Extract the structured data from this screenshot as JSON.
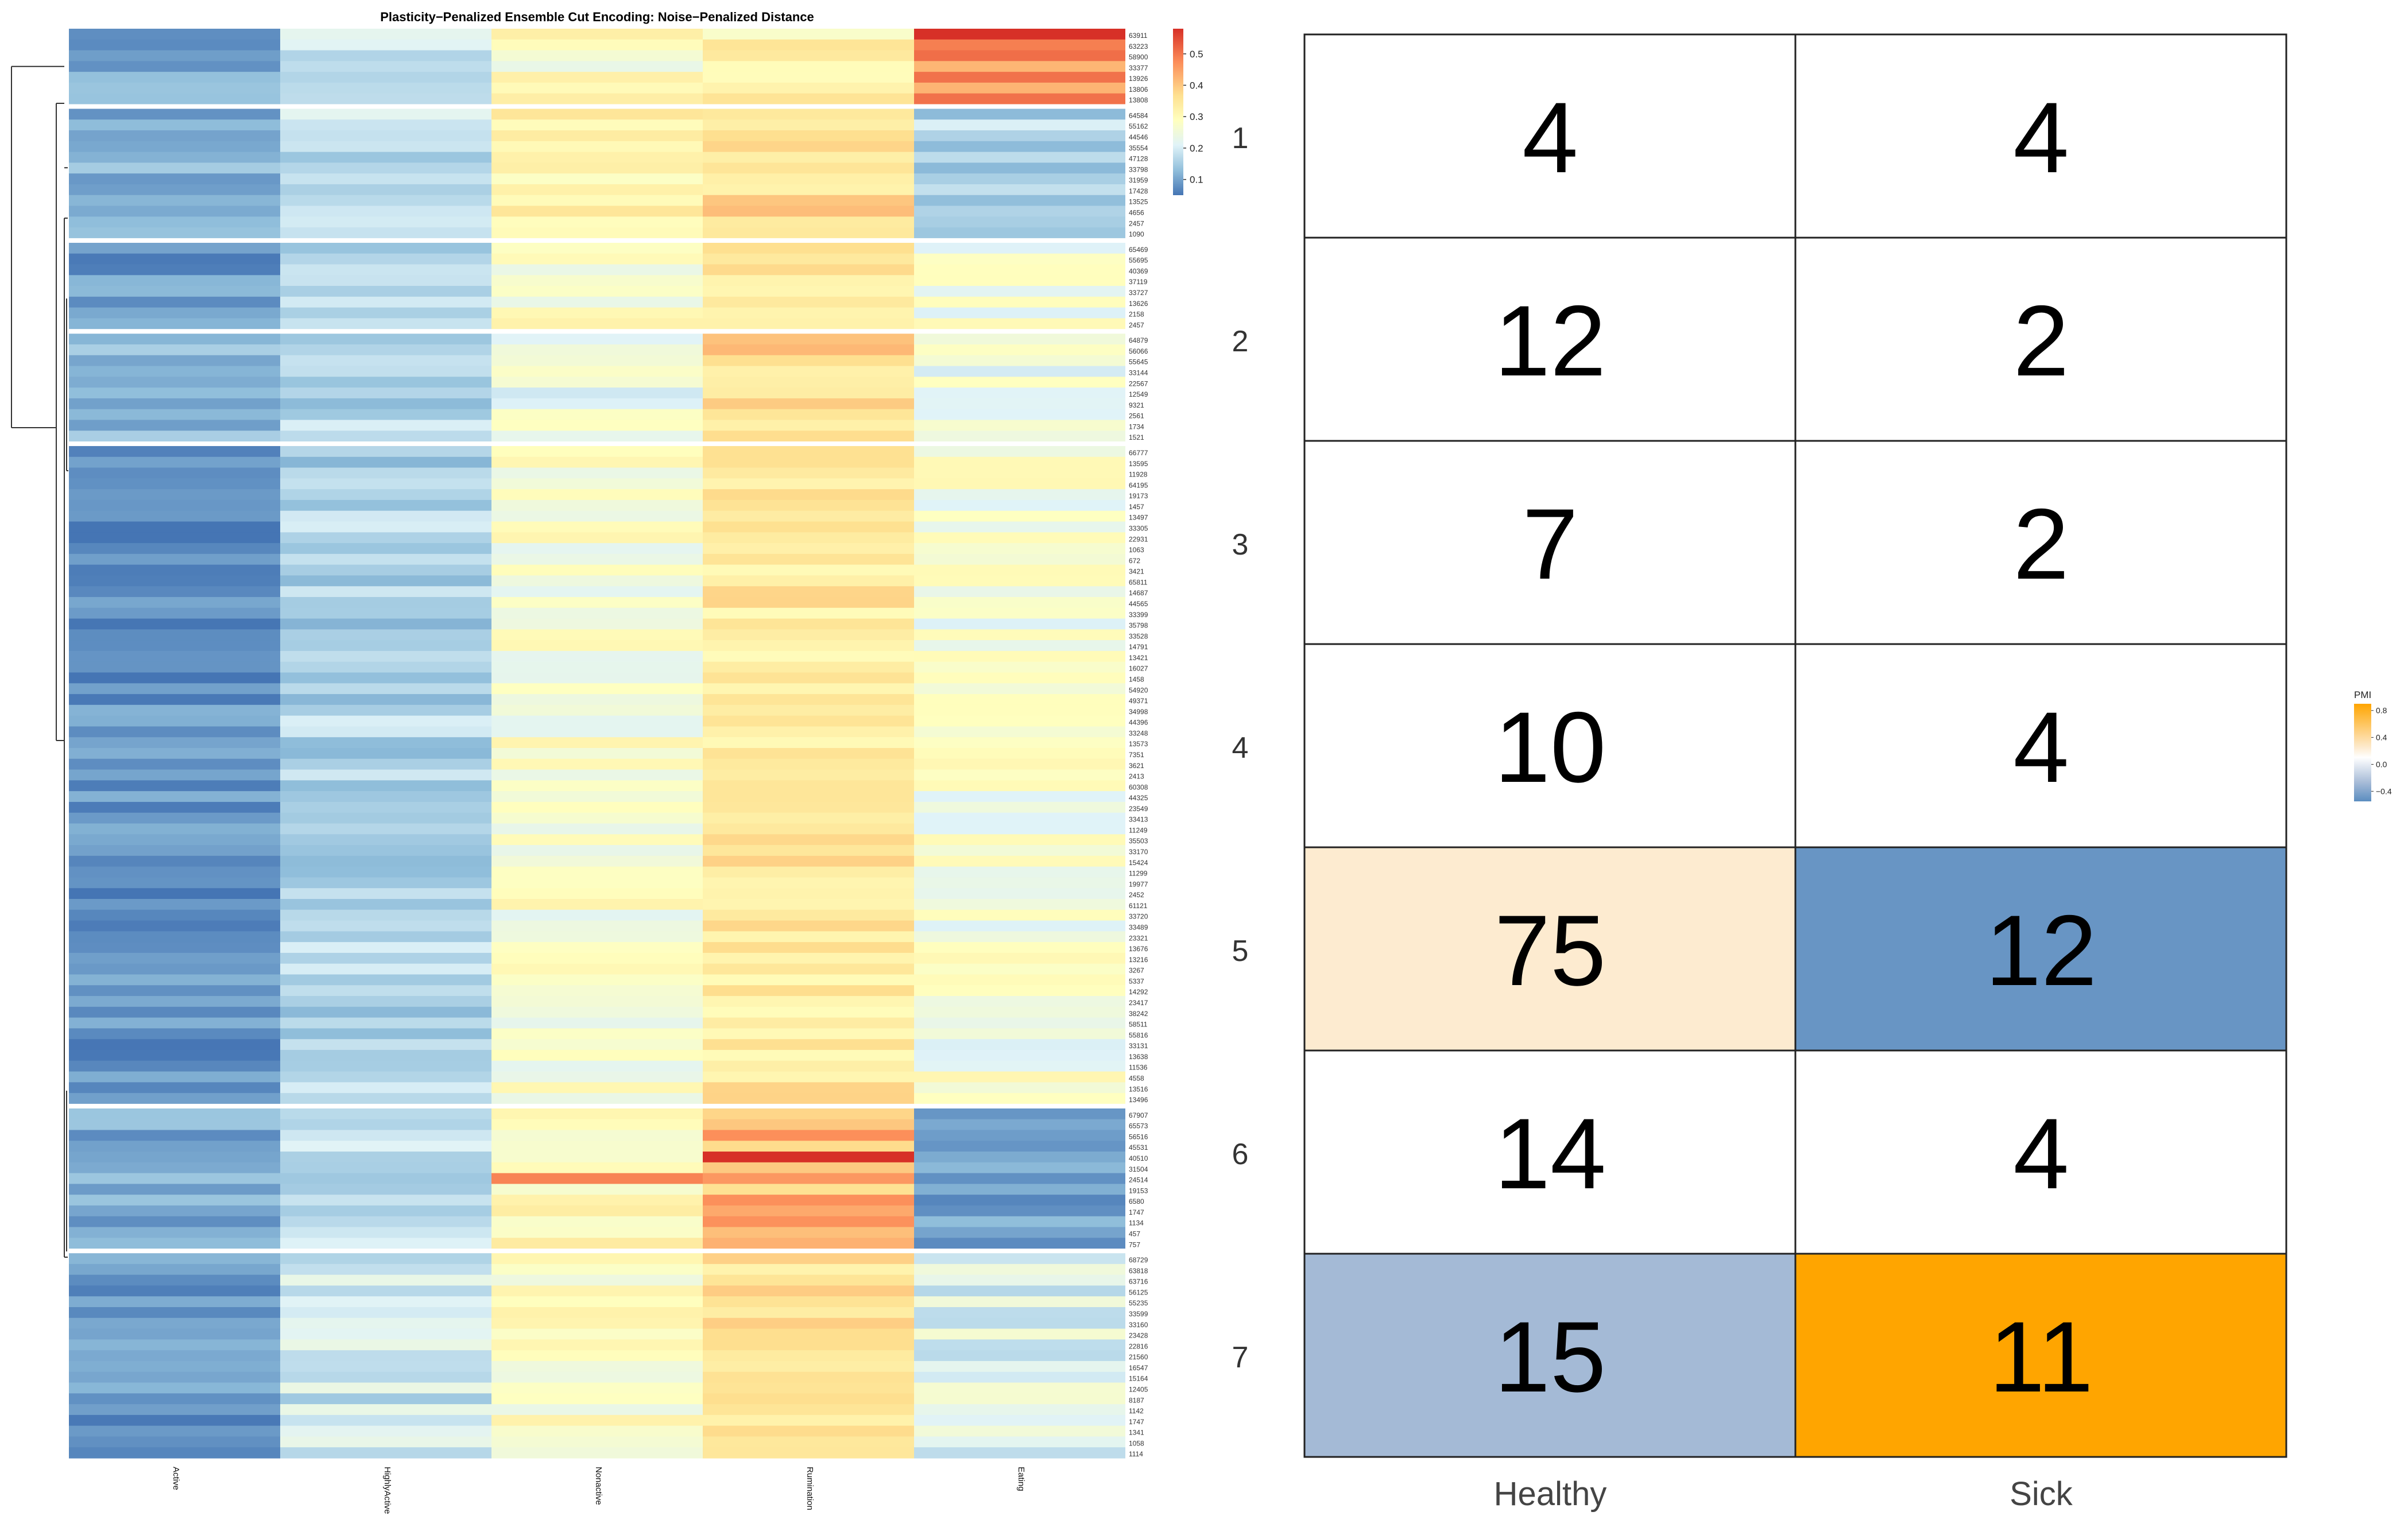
{
  "heatmap": {
    "title": "Plasticity−Penalized Ensemble Cut Encoding: Noise−Penalized Distance",
    "columns": [
      "Active",
      "HighlyActive",
      "Nonactive",
      "Rumination",
      "Eating"
    ],
    "legend_ticks": [
      "0.5",
      "0.4",
      "0.3",
      "0.2",
      "0.1"
    ],
    "legend_values": [
      0.5,
      0.4,
      0.3,
      0.2,
      0.1
    ],
    "range": [
      0.05,
      0.58
    ],
    "blocks": [
      {
        "base": [
          0.13,
          0.22,
          0.3,
          0.33,
          0.45
        ],
        "labels": [
          "63911",
          "63223",
          "58900",
          "33377",
          "13926",
          "13806",
          "13808"
        ]
      },
      {
        "base": [
          0.14,
          0.21,
          0.33,
          0.37,
          0.19
        ],
        "labels": [
          "64584",
          "55162",
          "44546",
          "35554",
          "47128",
          "33798",
          "31959",
          "17428",
          "13525",
          "4656",
          "2457",
          "1090"
        ]
      },
      {
        "base": [
          0.11,
          0.2,
          0.3,
          0.36,
          0.28
        ],
        "labels": [
          "65469",
          "55695",
          "40369",
          "37119",
          "33727",
          "13626",
          "2158",
          "2457"
        ]
      },
      {
        "base": [
          0.15,
          0.19,
          0.26,
          0.38,
          0.26
        ],
        "labels": [
          "64879",
          "56066",
          "55645",
          "33144",
          "22567",
          "12549",
          "9321",
          "2561",
          "1734",
          "1521"
        ]
      },
      {
        "base": [
          0.1,
          0.19,
          0.29,
          0.35,
          0.28
        ],
        "labels": [
          "66777",
          "13595",
          "11928",
          "64195",
          "19173",
          "1457",
          "13497",
          "33305",
          "22931",
          "1063",
          "672",
          "3421",
          "65811",
          "14687",
          "44565",
          "33399",
          "35798",
          "33528",
          "14791",
          "13421",
          "16027",
          "1458",
          "54920",
          "49371",
          "34998",
          "44396",
          "33248",
          "13573",
          "7351",
          "3621",
          "2413",
          "60308",
          "44325",
          "23549",
          "33413",
          "11249",
          "35503",
          "33170",
          "15424",
          "11299",
          "19977",
          "2452",
          "61121",
          "33720",
          "33489",
          "23321",
          "13676",
          "13216",
          "3267",
          "5337",
          "14292",
          "23417",
          "38242",
          "58511",
          "55816",
          "33131",
          "13638",
          "11536",
          "4558",
          "13516",
          "13496"
        ]
      },
      {
        "base": [
          0.13,
          0.2,
          0.31,
          0.42,
          0.12
        ],
        "labels": [
          "67907",
          "65573",
          "56516",
          "45531",
          "40510",
          "31504",
          "24514",
          "19153",
          "6580",
          "1747",
          "1134",
          "457",
          "757"
        ]
      },
      {
        "base": [
          0.11,
          0.22,
          0.29,
          0.36,
          0.24
        ],
        "labels": [
          "68729",
          "63818",
          "63716",
          "56125",
          "55235",
          "33599",
          "33160",
          "23428",
          "22816",
          "21560",
          "16547",
          "15164",
          "12405",
          "8187",
          "1142",
          "1747",
          "1341",
          "1058",
          "1114"
        ]
      }
    ]
  },
  "chart_data": [
    {
      "type": "heatmap",
      "title": "Plasticity−Penalized Ensemble Cut Encoding: Noise−Penalized Distance",
      "columns": [
        "Active",
        "HighlyActive",
        "Nonactive",
        "Rumination",
        "Eating"
      ],
      "colorbar_ticks": [
        0.1,
        0.2,
        0.3,
        0.4,
        0.5
      ],
      "cluster_mean_values": [
        {
          "cluster": "block-1",
          "values": [
            0.13,
            0.22,
            0.3,
            0.33,
            0.45
          ]
        },
        {
          "cluster": "block-2",
          "values": [
            0.14,
            0.21,
            0.33,
            0.37,
            0.19
          ]
        },
        {
          "cluster": "block-3",
          "values": [
            0.11,
            0.2,
            0.3,
            0.36,
            0.28
          ]
        },
        {
          "cluster": "block-4",
          "values": [
            0.15,
            0.19,
            0.26,
            0.38,
            0.26
          ]
        },
        {
          "cluster": "block-5",
          "values": [
            0.1,
            0.19,
            0.29,
            0.35,
            0.28
          ]
        },
        {
          "cluster": "block-6",
          "values": [
            0.13,
            0.2,
            0.31,
            0.42,
            0.12
          ]
        },
        {
          "cluster": "block-7",
          "values": [
            0.11,
            0.22,
            0.29,
            0.36,
            0.24
          ]
        }
      ]
    },
    {
      "type": "table",
      "rows": [
        "1",
        "2",
        "3",
        "4",
        "5",
        "6",
        "7"
      ],
      "columns": [
        "Healthy",
        "Sick"
      ],
      "counts": [
        [
          4,
          4
        ],
        [
          12,
          2
        ],
        [
          7,
          2
        ],
        [
          10,
          4
        ],
        [
          75,
          12
        ],
        [
          14,
          4
        ],
        [
          15,
          11
        ]
      ],
      "pmi": [
        [
          0.0,
          0.0
        ],
        [
          0.0,
          0.0
        ],
        [
          0.0,
          0.0
        ],
        [
          0.0,
          0.0
        ],
        [
          0.15,
          -0.45
        ],
        [
          0.0,
          0.0
        ],
        [
          -0.22,
          0.85
        ]
      ],
      "legend_title": "PMI",
      "legend_ticks": [
        "0.8",
        "0.4",
        "0.0",
        "−0.4"
      ],
      "legend_values": [
        0.8,
        0.4,
        0.0,
        -0.4
      ]
    }
  ],
  "pmi_table": {
    "rows": [
      "1",
      "2",
      "3",
      "4",
      "5",
      "6",
      "7"
    ],
    "columns": [
      "Healthy",
      "Sick"
    ],
    "counts": [
      [
        4,
        4
      ],
      [
        12,
        2
      ],
      [
        7,
        2
      ],
      [
        10,
        4
      ],
      [
        75,
        12
      ],
      [
        14,
        4
      ],
      [
        15,
        11
      ]
    ],
    "pmi": [
      [
        0.0,
        0.0
      ],
      [
        0.0,
        0.0
      ],
      [
        0.0,
        0.0
      ],
      [
        0.0,
        0.0
      ],
      [
        0.15,
        -0.45
      ],
      [
        0.0,
        0.0
      ],
      [
        -0.22,
        0.85
      ]
    ],
    "legend_title": "PMI",
    "legend_ticks": [
      "0.8",
      "0.4",
      "0.0",
      "−0.4"
    ],
    "legend_values": [
      0.8,
      0.4,
      0.0,
      -0.4
    ]
  }
}
